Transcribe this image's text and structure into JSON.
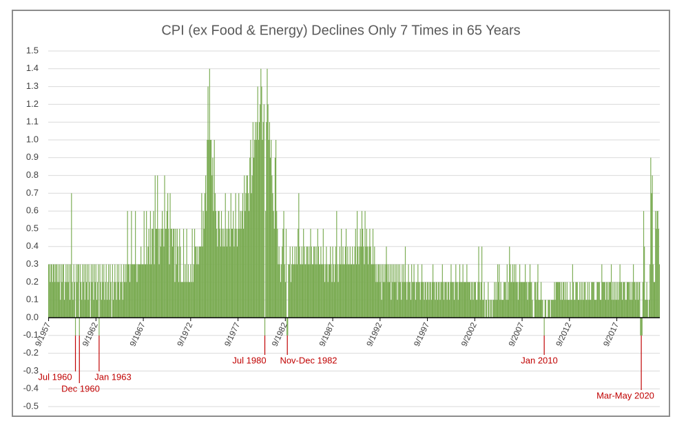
{
  "chart_data": {
    "type": "bar",
    "title": "CPI (ex Food & Energy) Declines Only 7 Times in 65 Years",
    "color": "#7aab52",
    "annotation_color": "#c00000",
    "annotations": [
      "Jul 1960",
      "Dec 1960",
      "Jan 1963",
      "Jul 1980",
      "Nov-Dec 1982",
      "Jan 2010",
      "Mar-May 2020"
    ],
    "ylim": [
      -0.5,
      1.5
    ],
    "yticks": [
      -0.5,
      -0.4,
      -0.3,
      -0.2,
      -0.1,
      {
        "value": 0,
        "label": "0.0"
      },
      0.1,
      0.2,
      0.3,
      0.4,
      0.5,
      0.6,
      0.7,
      0.8,
      0.9,
      {
        "value": 1,
        "label": "1.0"
      },
      1.1,
      1.2,
      1.3,
      1.4,
      1.5
    ],
    "grid": true,
    "categories": [
      "9/1957",
      null,
      null,
      null,
      null,
      null,
      null,
      null,
      null,
      null,
      null,
      null,
      null,
      null,
      null,
      null,
      null,
      null,
      null,
      null,
      null,
      null,
      null,
      null,
      null,
      null,
      null,
      null,
      null,
      null,
      null,
      null,
      null,
      null,
      null,
      null,
      null,
      null,
      null,
      null,
      null,
      null,
      null,
      null,
      null,
      null,
      null,
      null,
      null,
      null,
      null,
      null,
      null,
      null,
      null,
      null,
      null,
      null,
      null,
      null,
      "9/1962",
      null,
      null,
      null,
      null,
      null,
      null,
      null,
      null,
      null,
      null,
      null,
      null,
      null,
      null,
      null,
      null,
      null,
      null,
      null,
      null,
      null,
      null,
      null,
      null,
      null,
      null,
      null,
      null,
      null,
      null,
      null,
      null,
      null,
      null,
      null,
      null,
      null,
      null,
      null,
      null,
      null,
      null,
      null,
      null,
      null,
      null,
      null,
      null,
      null,
      null,
      null,
      null,
      null,
      null,
      null,
      null,
      null,
      null,
      null,
      "9/1967",
      null,
      null,
      null,
      null,
      null,
      null,
      null,
      null,
      null,
      null,
      null,
      null,
      null,
      null,
      null,
      null,
      null,
      null,
      null,
      null,
      null,
      null,
      null,
      null,
      null,
      null,
      null,
      null,
      null,
      null,
      null,
      null,
      null,
      null,
      null,
      null,
      null,
      null,
      null,
      null,
      null,
      null,
      null,
      null,
      null,
      null,
      null,
      null,
      null,
      null,
      null,
      null,
      null,
      null,
      null,
      null,
      null,
      null,
      null,
      "9/1972",
      null,
      null,
      null,
      null,
      null,
      null,
      null,
      null,
      null,
      null,
      null,
      null,
      null,
      null,
      null,
      null,
      null,
      null,
      null,
      null,
      null,
      null,
      null,
      null,
      null,
      null,
      null,
      null,
      null,
      null,
      null,
      null,
      null,
      null,
      null,
      null,
      null,
      null,
      null,
      null,
      null,
      null,
      null,
      null,
      null,
      null,
      null,
      null,
      null,
      null,
      null,
      null,
      null,
      null,
      null,
      null,
      null,
      null,
      null,
      "9/1977",
      null,
      null,
      null,
      null,
      null,
      null,
      null,
      null,
      null,
      null,
      null,
      null,
      null,
      null,
      null,
      null,
      null,
      null,
      null,
      null,
      null,
      null,
      null,
      null,
      null,
      null,
      null,
      null,
      null,
      null,
      null,
      null,
      null,
      null,
      null,
      null,
      null,
      null,
      null,
      null,
      null,
      null,
      null,
      null,
      null,
      null,
      null,
      null,
      null,
      null,
      null,
      null,
      null,
      null,
      null,
      null,
      null,
      null,
      null,
      "9/1982",
      null,
      null,
      null,
      null,
      null,
      null,
      null,
      null,
      null,
      null,
      null,
      null,
      null,
      null,
      null,
      null,
      null,
      null,
      null,
      null,
      null,
      null,
      null,
      null,
      null,
      null,
      null,
      null,
      null,
      null,
      null,
      null,
      null,
      null,
      null,
      null,
      null,
      null,
      null,
      null,
      null,
      null,
      null,
      null,
      null,
      null,
      null,
      null,
      null,
      null,
      null,
      null,
      null,
      null,
      null,
      null,
      null,
      null,
      null,
      "9/1987",
      null,
      null,
      null,
      null,
      null,
      null,
      null,
      null,
      null,
      null,
      null,
      null,
      null,
      null,
      null,
      null,
      null,
      null,
      null,
      null,
      null,
      null,
      null,
      null,
      null,
      null,
      null,
      null,
      null,
      null,
      null,
      null,
      null,
      null,
      null,
      null,
      null,
      null,
      null,
      null,
      null,
      null,
      null,
      null,
      null,
      null,
      null,
      null,
      null,
      null,
      null,
      null,
      null,
      null,
      null,
      null,
      null,
      null,
      null,
      "9/1992",
      null,
      null,
      null,
      null,
      null,
      null,
      null,
      null,
      null,
      null,
      null,
      null,
      null,
      null,
      null,
      null,
      null,
      null,
      null,
      null,
      null,
      null,
      null,
      null,
      null,
      null,
      null,
      null,
      null,
      null,
      null,
      null,
      null,
      null,
      null,
      null,
      null,
      null,
      null,
      null,
      null,
      null,
      null,
      null,
      null,
      null,
      null,
      null,
      null,
      null,
      null,
      null,
      null,
      null,
      null,
      null,
      null,
      null,
      null,
      "9/1997",
      null,
      null,
      null,
      null,
      null,
      null,
      null,
      null,
      null,
      null,
      null,
      null,
      null,
      null,
      null,
      null,
      null,
      null,
      null,
      null,
      null,
      null,
      null,
      null,
      null,
      null,
      null,
      null,
      null,
      null,
      null,
      null,
      null,
      null,
      null,
      null,
      null,
      null,
      null,
      null,
      null,
      null,
      null,
      null,
      null,
      null,
      null,
      null,
      null,
      null,
      null,
      null,
      null,
      null,
      null,
      null,
      null,
      null,
      null,
      "9/2002",
      null,
      null,
      null,
      null,
      null,
      null,
      null,
      null,
      null,
      null,
      null,
      null,
      null,
      null,
      null,
      null,
      null,
      null,
      null,
      null,
      null,
      null,
      null,
      null,
      null,
      null,
      null,
      null,
      null,
      null,
      null,
      null,
      null,
      null,
      null,
      null,
      null,
      null,
      null,
      null,
      null,
      null,
      null,
      null,
      null,
      null,
      null,
      null,
      null,
      null,
      null,
      null,
      null,
      null,
      null,
      null,
      null,
      null,
      null,
      "9/2007",
      null,
      null,
      null,
      null,
      null,
      null,
      null,
      null,
      null,
      null,
      null,
      null,
      null,
      null,
      null,
      null,
      null,
      null,
      null,
      null,
      null,
      null,
      null,
      null,
      null,
      null,
      null,
      null,
      null,
      null,
      null,
      null,
      null,
      null,
      null,
      null,
      null,
      null,
      null,
      null,
      null,
      null,
      null,
      null,
      null,
      null,
      null,
      null,
      null,
      null,
      null,
      null,
      null,
      null,
      null,
      null,
      null,
      null,
      null,
      "9/2012",
      null,
      null,
      null,
      null,
      null,
      null,
      null,
      null,
      null,
      null,
      null,
      null,
      null,
      null,
      null,
      null,
      null,
      null,
      null,
      null,
      null,
      null,
      null,
      null,
      null,
      null,
      null,
      null,
      null,
      null,
      null,
      null,
      null,
      null,
      null,
      null,
      null,
      null,
      null,
      null,
      null,
      null,
      null,
      null,
      null,
      null,
      null,
      null,
      null,
      null,
      null,
      null,
      null,
      null,
      null,
      null,
      null,
      null,
      null,
      "9/2017",
      null,
      null,
      null,
      null,
      null,
      null,
      null,
      null,
      null,
      null,
      null,
      null,
      null,
      null,
      null,
      null,
      null,
      null,
      null,
      null,
      null,
      null,
      null,
      null,
      null,
      null,
      null,
      null,
      null,
      null,
      null,
      null,
      null,
      null,
      null,
      null,
      null,
      null,
      null,
      null,
      null,
      null,
      null,
      null,
      null,
      null,
      null,
      null,
      null,
      null,
      null,
      null,
      null,
      null
    ],
    "values": [
      0.3,
      0.3,
      0.2,
      0.3,
      0.3,
      0.2,
      0.3,
      0.3,
      0.2,
      0.3,
      0.3,
      0.2,
      0.3,
      0.2,
      0.3,
      0.1,
      0.3,
      0.2,
      0.3,
      0.3,
      0.1,
      0.2,
      0.3,
      0.2,
      0.3,
      0.2,
      0.3,
      0.1,
      0.3,
      0.7,
      0.2,
      0.1,
      0.3,
      0.2,
      -0.1,
      0.3,
      0.2,
      0.3,
      0.3,
      -0.1,
      0.3,
      0.2,
      0.1,
      0.3,
      0.2,
      0.3,
      0.1,
      0.3,
      0.2,
      0.3,
      0.1,
      0.3,
      0.2,
      0.0,
      0.3,
      0.2,
      0.3,
      0.1,
      0.3,
      0.2,
      0.3,
      0.1,
      0.2,
      0.3,
      -0.1,
      0.3,
      0.2,
      0.1,
      0.3,
      0.2,
      0.3,
      0.1,
      0.2,
      0.3,
      0.1,
      0.2,
      0.3,
      0.1,
      0.3,
      0.2,
      0.0,
      0.3,
      0.1,
      0.2,
      0.3,
      0.2,
      0.1,
      0.3,
      0.2,
      0.3,
      0.1,
      0.2,
      0.3,
      0.2,
      0.1,
      0.3,
      0.2,
      0.3,
      0.2,
      0.3,
      0.6,
      0.3,
      0.3,
      0.2,
      0.3,
      0.6,
      0.3,
      0.3,
      0.3,
      0.3,
      0.6,
      0.3,
      0.2,
      0.3,
      0.3,
      0.3,
      0.3,
      0.4,
      0.3,
      0.3,
      0.3,
      0.6,
      0.3,
      0.3,
      0.6,
      0.3,
      0.4,
      0.5,
      0.3,
      0.6,
      0.3,
      0.5,
      0.5,
      0.6,
      0.3,
      0.8,
      0.5,
      0.5,
      0.8,
      0.5,
      0.3,
      0.5,
      0.4,
      0.5,
      0.6,
      0.5,
      0.4,
      0.8,
      0.5,
      0.5,
      0.6,
      0.7,
      0.5,
      0.3,
      0.7,
      0.5,
      0.5,
      0.4,
      0.5,
      0.5,
      0.2,
      0.5,
      0.3,
      0.5,
      0.4,
      0.2,
      0.5,
      0.4,
      0.2,
      0.2,
      0.2,
      0.5,
      0.2,
      0.3,
      0.2,
      0.5,
      0.2,
      0.3,
      0.2,
      0.2,
      0.3,
      0.2,
      0.5,
      0.2,
      0.3,
      0.5,
      0.4,
      0.4,
      0.3,
      0.4,
      0.3,
      0.4,
      0.4,
      0.4,
      0.7,
      0.4,
      0.6,
      0.5,
      0.7,
      0.8,
      0.6,
      1.0,
      1.3,
      1.0,
      1.4,
      1.0,
      1.0,
      0.8,
      0.9,
      0.6,
      1.0,
      0.7,
      0.6,
      0.5,
      0.4,
      0.6,
      0.6,
      0.5,
      0.4,
      0.6,
      0.5,
      0.4,
      0.5,
      0.4,
      0.7,
      0.5,
      0.4,
      0.5,
      0.6,
      0.5,
      0.4,
      0.7,
      0.5,
      0.5,
      0.6,
      0.4,
      0.5,
      0.7,
      0.5,
      0.4,
      0.5,
      0.7,
      0.5,
      0.6,
      0.5,
      0.6,
      0.7,
      0.5,
      0.8,
      0.6,
      0.7,
      0.8,
      0.8,
      0.7,
      0.6,
      0.9,
      1.0,
      0.7,
      0.8,
      1.1,
      0.9,
      1.0,
      1.1,
      1.0,
      1.1,
      1.3,
      1.0,
      1.1,
      1.2,
      1.4,
      1.3,
      1.0,
      1.1,
      1.2,
      -0.1,
      0.6,
      1.1,
      1.4,
      1.2,
      1.0,
      1.1,
      0.9,
      1.0,
      0.8,
      0.7,
      0.6,
      0.5,
      0.9,
      1.0,
      0.6,
      0.5,
      0.3,
      0.4,
      0.3,
      0.2,
      0.3,
      0.4,
      0.5,
      0.6,
      0.3,
      0.2,
      0.5,
      -0.1,
      -0.1,
      0.3,
      0.3,
      0.4,
      0.2,
      0.3,
      0.4,
      0.3,
      0.3,
      0.4,
      0.3,
      0.4,
      0.3,
      0.5,
      0.7,
      0.4,
      0.3,
      0.3,
      0.4,
      0.3,
      0.5,
      0.4,
      0.3,
      0.3,
      0.4,
      0.4,
      0.3,
      0.4,
      0.3,
      0.5,
      0.4,
      0.3,
      0.3,
      0.4,
      0.4,
      0.3,
      0.4,
      0.3,
      0.5,
      0.4,
      0.3,
      0.3,
      0.4,
      0.3,
      0.3,
      0.5,
      0.3,
      0.2,
      0.3,
      0.4,
      0.3,
      0.2,
      0.3,
      0.3,
      0.4,
      0.3,
      0.2,
      0.4,
      0.3,
      0.2,
      0.3,
      0.4,
      0.6,
      0.3,
      0.2,
      0.3,
      0.4,
      0.3,
      0.5,
      0.3,
      0.4,
      0.3,
      0.3,
      0.4,
      0.5,
      0.3,
      0.4,
      0.3,
      0.3,
      0.4,
      0.3,
      0.3,
      0.4,
      0.3,
      0.3,
      0.4,
      0.5,
      0.3,
      0.6,
      0.4,
      0.3,
      0.4,
      0.5,
      0.4,
      0.6,
      0.5,
      0.4,
      0.3,
      0.6,
      0.4,
      0.5,
      0.4,
      0.3,
      0.4,
      0.5,
      0.4,
      0.3,
      0.3,
      0.5,
      0.3,
      0.4,
      0.3,
      0.2,
      0.3,
      0.2,
      0.3,
      0.3,
      0.2,
      0.3,
      0.1,
      0.3,
      0.2,
      0.3,
      0.2,
      0.3,
      0.4,
      0.3,
      0.2,
      0.3,
      0.2,
      0.3,
      0.1,
      0.3,
      0.2,
      0.3,
      0.2,
      0.3,
      0.2,
      0.3,
      0.1,
      0.3,
      0.2,
      0.3,
      0.2,
      0.1,
      0.3,
      0.2,
      0.3,
      0.2,
      0.4,
      0.2,
      0.1,
      0.2,
      0.3,
      0.2,
      0.2,
      0.1,
      0.3,
      0.2,
      0.2,
      0.3,
      0.2,
      0.1,
      0.2,
      0.2,
      0.3,
      0.2,
      0.2,
      0.1,
      0.2,
      0.3,
      0.2,
      0.2,
      0.1,
      0.2,
      0.2,
      0.1,
      0.2,
      0.2,
      0.1,
      0.2,
      0.2,
      0.1,
      0.2,
      0.3,
      0.2,
      0.2,
      0.1,
      0.2,
      0.2,
      0.1,
      0.2,
      0.2,
      0.1,
      0.2,
      0.2,
      0.3,
      0.2,
      0.1,
      0.2,
      0.2,
      0.2,
      0.1,
      0.2,
      0.2,
      0.1,
      0.2,
      0.3,
      0.2,
      0.2,
      0.2,
      0.1,
      0.2,
      0.3,
      0.2,
      0.2,
      0.1,
      0.2,
      0.3,
      0.2,
      0.2,
      0.2,
      0.3,
      0.2,
      0.2,
      0.2,
      0.2,
      0.3,
      0.2,
      0.2,
      0.2,
      0.2,
      0.1,
      0.2,
      0.2,
      0.1,
      0.2,
      0.2,
      0.2,
      0.1,
      0.1,
      0.2,
      0.4,
      0.2,
      0.1,
      0.2,
      0.4,
      0.1,
      0.1,
      0.2,
      0.0,
      0.1,
      0.1,
      0.0,
      0.2,
      0.1,
      0.0,
      0.1,
      0.1,
      0.0,
      0.1,
      0.1,
      0.2,
      0.1,
      0.2,
      0.1,
      0.3,
      0.2,
      0.3,
      0.1,
      0.2,
      0.1,
      0.1,
      0.1,
      0.2,
      0.2,
      0.2,
      0.1,
      0.3,
      0.1,
      0.2,
      0.4,
      0.3,
      0.2,
      0.2,
      0.3,
      0.2,
      0.3,
      0.2,
      0.3,
      0.2,
      0.2,
      0.1,
      0.2,
      0.3,
      0.2,
      0.2,
      0.2,
      0.2,
      0.2,
      0.2,
      0.3,
      0.2,
      0.2,
      0.1,
      0.2,
      0.2,
      0.3,
      0.2,
      0.2,
      0.1,
      0.0,
      0.0,
      0.2,
      0.2,
      0.1,
      0.2,
      0.3,
      0.1,
      0.1,
      0.1,
      0.2,
      0.1,
      0.1,
      0.0,
      -0.1,
      0.1,
      0.1,
      0.0,
      0.0,
      0.1,
      0.1,
      0.1,
      0.0,
      0.1,
      0.1,
      0.1,
      0.1,
      0.2,
      0.1,
      0.2,
      0.2,
      0.2,
      0.2,
      0.2,
      0.2,
      0.1,
      0.2,
      0.1,
      0.2,
      0.2,
      0.1,
      0.2,
      0.1,
      0.2,
      0.1,
      0.1,
      0.1,
      0.2,
      0.1,
      0.1,
      0.3,
      0.2,
      0.1,
      0.1,
      0.2,
      0.2,
      0.2,
      0.1,
      0.1,
      0.2,
      0.1,
      0.2,
      0.1,
      0.2,
      0.1,
      0.2,
      0.2,
      0.1,
      0.1,
      0.2,
      0.1,
      0.2,
      0.1,
      0.1,
      0.2,
      0.2,
      0.2,
      0.2,
      0.1,
      0.1,
      0.1,
      0.2,
      0.2,
      0.2,
      0.2,
      0.1,
      0.1,
      0.3,
      0.2,
      0.2,
      0.2,
      0.2,
      0.1,
      0.2,
      0.2,
      0.1,
      0.2,
      0.2,
      0.2,
      0.3,
      0.1,
      0.2,
      0.1,
      0.2,
      0.1,
      0.2,
      0.1,
      0.2,
      0.1,
      0.2,
      0.3,
      0.2,
      0.2,
      0.1,
      0.2,
      0.2,
      0.2,
      0.1,
      0.1,
      0.2,
      0.2,
      0.2,
      0.2,
      0.1,
      0.2,
      0.1,
      0.2,
      0.3,
      0.2,
      0.2,
      0.1,
      0.2,
      0.2,
      0.1,
      0.2,
      0.2,
      -0.1,
      -0.1,
      -0.1,
      0.2,
      0.6,
      0.4,
      0.1,
      0.1,
      0.2,
      0.1,
      0.0,
      0.1,
      0.3,
      0.9,
      0.7,
      0.8,
      0.3,
      0.2,
      0.2,
      0.6,
      0.5,
      0.6,
      0.6,
      0.5,
      0.3
    ]
  }
}
